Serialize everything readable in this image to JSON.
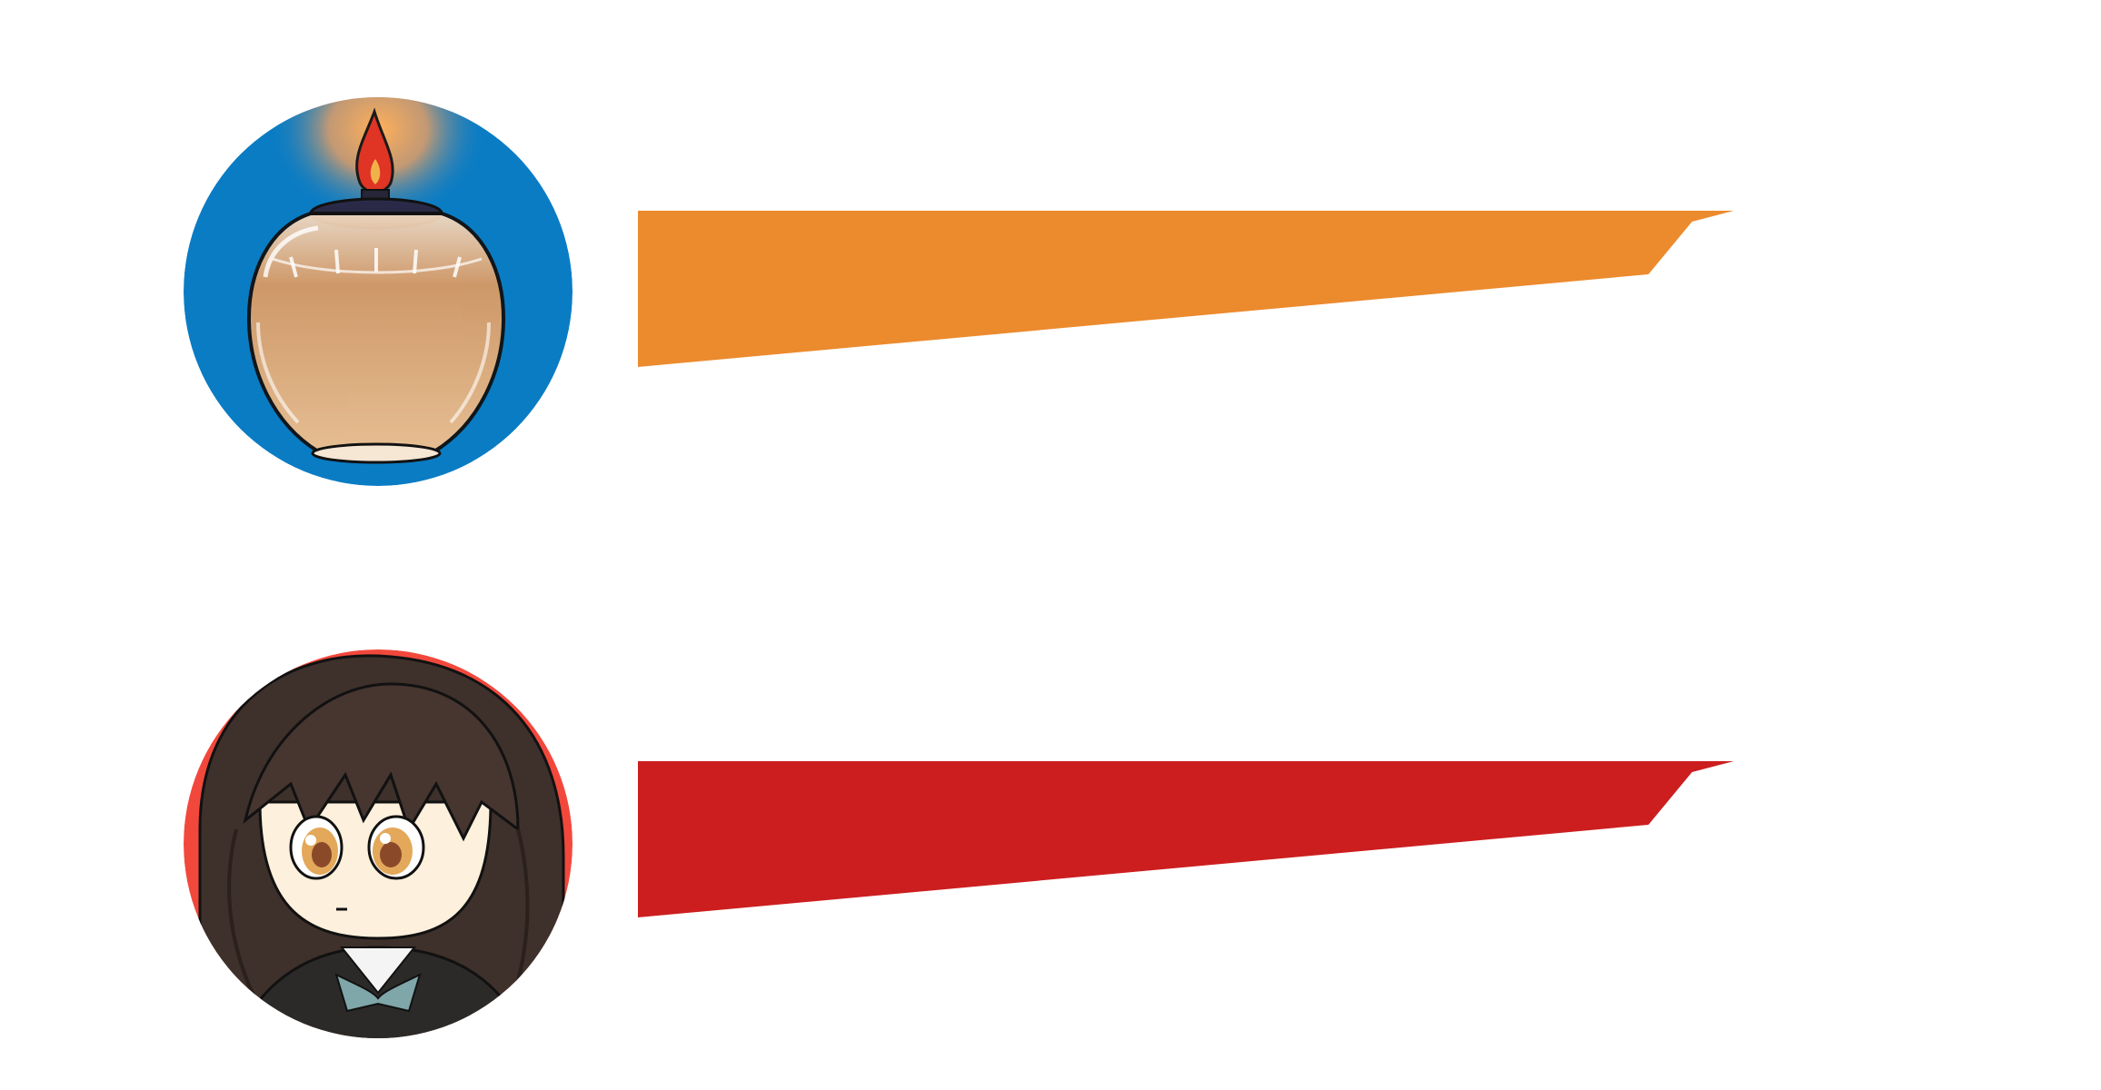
{
  "entries": [
    {
      "id": "lamp",
      "avatar_icon": "oil-lamp-icon",
      "avatar_bg": "#0a7cc4",
      "banner_color": "#ec8a2e",
      "banner_text": ""
    },
    {
      "id": "girl",
      "avatar_icon": "anime-girl-avatar",
      "avatar_bg": "#f2483c",
      "banner_color": "#cc1e1f",
      "banner_text": ""
    }
  ]
}
